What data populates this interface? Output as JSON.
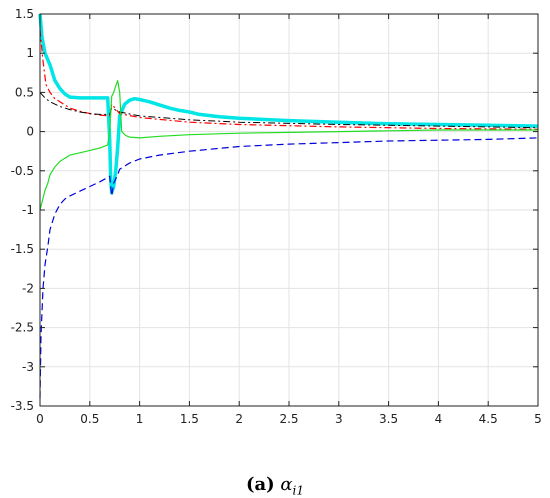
{
  "chart_data": {
    "type": "line",
    "title": "",
    "xlabel": "",
    "ylabel": "",
    "xlim": [
      0,
      5
    ],
    "ylim": [
      -3.5,
      1.5
    ],
    "xticks": [
      "0",
      "0.5",
      "1",
      "1.5",
      "2",
      "2.5",
      "3",
      "3.5",
      "4",
      "4.5",
      "5"
    ],
    "yticks": [
      "1.5",
      "1",
      "0.5",
      "0",
      "-0.5",
      "-1",
      "-1.5",
      "-2",
      "-2.5",
      "-3",
      "-3.5"
    ],
    "grid": true,
    "legend": "none",
    "series": [
      {
        "color": "#00e5e5",
        "style": "solid",
        "width": 3.5,
        "x": [
          0,
          0.02,
          0.05,
          0.1,
          0.15,
          0.2,
          0.25,
          0.3,
          0.4,
          0.5,
          0.6,
          0.68,
          0.7,
          0.71,
          0.72,
          0.74,
          0.76,
          0.78,
          0.8,
          0.85,
          0.9,
          0.95,
          1.0,
          1.1,
          1.2,
          1.3,
          1.4,
          1.5,
          1.6,
          1.8,
          2.0,
          2.5,
          3.0,
          3.5,
          4.0,
          4.5,
          5.0
        ],
        "y": [
          1.5,
          1.2,
          1.0,
          0.85,
          0.65,
          0.55,
          0.48,
          0.44,
          0.43,
          0.43,
          0.43,
          0.43,
          -0.1,
          -0.6,
          -0.78,
          -0.7,
          -0.5,
          -0.2,
          0.2,
          0.35,
          0.4,
          0.42,
          0.41,
          0.38,
          0.34,
          0.3,
          0.27,
          0.25,
          0.22,
          0.19,
          0.17,
          0.14,
          0.12,
          0.1,
          0.09,
          0.08,
          0.07
        ]
      },
      {
        "color": "#ff0000",
        "style": "dashdot",
        "width": 1.2,
        "x": [
          0,
          0.03,
          0.06,
          0.1,
          0.15,
          0.2,
          0.3,
          0.4,
          0.5,
          0.6,
          0.7,
          0.72,
          0.8,
          1.0,
          1.5,
          2.0,
          3.0,
          4.0,
          5.0
        ],
        "y": [
          1.3,
          0.9,
          0.6,
          0.5,
          0.42,
          0.38,
          0.3,
          0.26,
          0.23,
          0.21,
          0.2,
          0.35,
          0.23,
          0.18,
          0.12,
          0.09,
          0.06,
          0.04,
          0.03
        ]
      },
      {
        "color": "#000000",
        "style": "dashdot",
        "width": 1.0,
        "x": [
          0,
          0.05,
          0.1,
          0.2,
          0.3,
          0.4,
          0.5,
          0.6,
          0.7,
          0.72,
          0.8,
          1.0,
          1.5,
          2.0,
          3.0,
          4.0,
          5.0
        ],
        "y": [
          0.5,
          0.43,
          0.38,
          0.32,
          0.28,
          0.25,
          0.23,
          0.22,
          0.22,
          0.3,
          0.25,
          0.2,
          0.15,
          0.12,
          0.09,
          0.07,
          0.05
        ]
      },
      {
        "color": "#0000dd",
        "style": "dashed",
        "width": 1.2,
        "x": [
          0,
          0.01,
          0.03,
          0.05,
          0.08,
          0.1,
          0.15,
          0.2,
          0.25,
          0.3,
          0.4,
          0.5,
          0.6,
          0.7,
          0.72,
          0.74,
          0.78,
          0.8,
          0.9,
          1.0,
          1.2,
          1.5,
          2.0,
          2.5,
          3.0,
          3.5,
          4.0,
          4.5,
          5.0
        ],
        "y": [
          -3.4,
          -2.6,
          -2.0,
          -1.7,
          -1.45,
          -1.25,
          -1.05,
          -0.93,
          -0.86,
          -0.82,
          -0.76,
          -0.7,
          -0.64,
          -0.57,
          -0.82,
          -0.66,
          -0.55,
          -0.48,
          -0.4,
          -0.35,
          -0.3,
          -0.25,
          -0.19,
          -0.16,
          -0.14,
          -0.12,
          -0.11,
          -0.1,
          -0.08
        ]
      },
      {
        "color": "#22dd22",
        "style": "solid",
        "width": 1.2,
        "x": [
          0,
          0.02,
          0.05,
          0.08,
          0.1,
          0.15,
          0.2,
          0.3,
          0.4,
          0.5,
          0.6,
          0.68,
          0.7,
          0.72,
          0.74,
          0.76,
          0.78,
          0.8,
          0.82,
          0.86,
          0.9,
          1.0,
          1.2,
          1.5,
          2.0,
          2.5,
          3.0,
          3.5,
          4.0,
          4.5,
          5.0
        ],
        "y": [
          -1.0,
          -0.9,
          -0.75,
          -0.65,
          -0.55,
          -0.45,
          -0.38,
          -0.3,
          -0.27,
          -0.24,
          -0.21,
          -0.17,
          0.0,
          0.45,
          0.5,
          0.58,
          0.65,
          0.5,
          0.0,
          -0.05,
          -0.07,
          -0.08,
          -0.06,
          -0.04,
          -0.02,
          -0.01,
          0.0,
          0.01,
          0.02,
          0.02,
          0.02
        ]
      }
    ]
  },
  "caption": {
    "label": "(a)",
    "symbol": "α",
    "subscript": "i1"
  }
}
